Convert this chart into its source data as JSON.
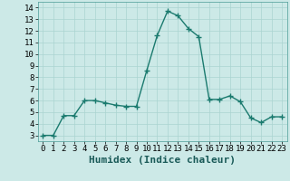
{
  "x": [
    0,
    1,
    2,
    3,
    4,
    5,
    6,
    7,
    8,
    9,
    10,
    11,
    12,
    13,
    14,
    15,
    16,
    17,
    18,
    19,
    20,
    21,
    22,
    23
  ],
  "y": [
    3,
    3,
    4.7,
    4.7,
    6.0,
    6.0,
    5.8,
    5.6,
    5.5,
    5.5,
    8.6,
    11.6,
    13.7,
    13.3,
    12.2,
    11.5,
    6.1,
    6.1,
    6.4,
    5.9,
    4.5,
    4.1,
    4.6,
    4.6
  ],
  "line_color": "#1a7a6e",
  "marker": "+",
  "marker_size": 4,
  "bg_color": "#cce9e7",
  "grid_color": "#aad4d1",
  "xlabel": "Humidex (Indice chaleur)",
  "ylim": [
    2.5,
    14.5
  ],
  "xlim": [
    -0.5,
    23.5
  ],
  "yticks": [
    3,
    4,
    5,
    6,
    7,
    8,
    9,
    10,
    11,
    12,
    13,
    14
  ],
  "xticks": [
    0,
    1,
    2,
    3,
    4,
    5,
    6,
    7,
    8,
    9,
    10,
    11,
    12,
    13,
    14,
    15,
    16,
    17,
    18,
    19,
    20,
    21,
    22,
    23
  ],
  "tick_label_fontsize": 6.5,
  "xlabel_fontsize": 8,
  "line_width": 1.0,
  "marker_edge_width": 1.0
}
